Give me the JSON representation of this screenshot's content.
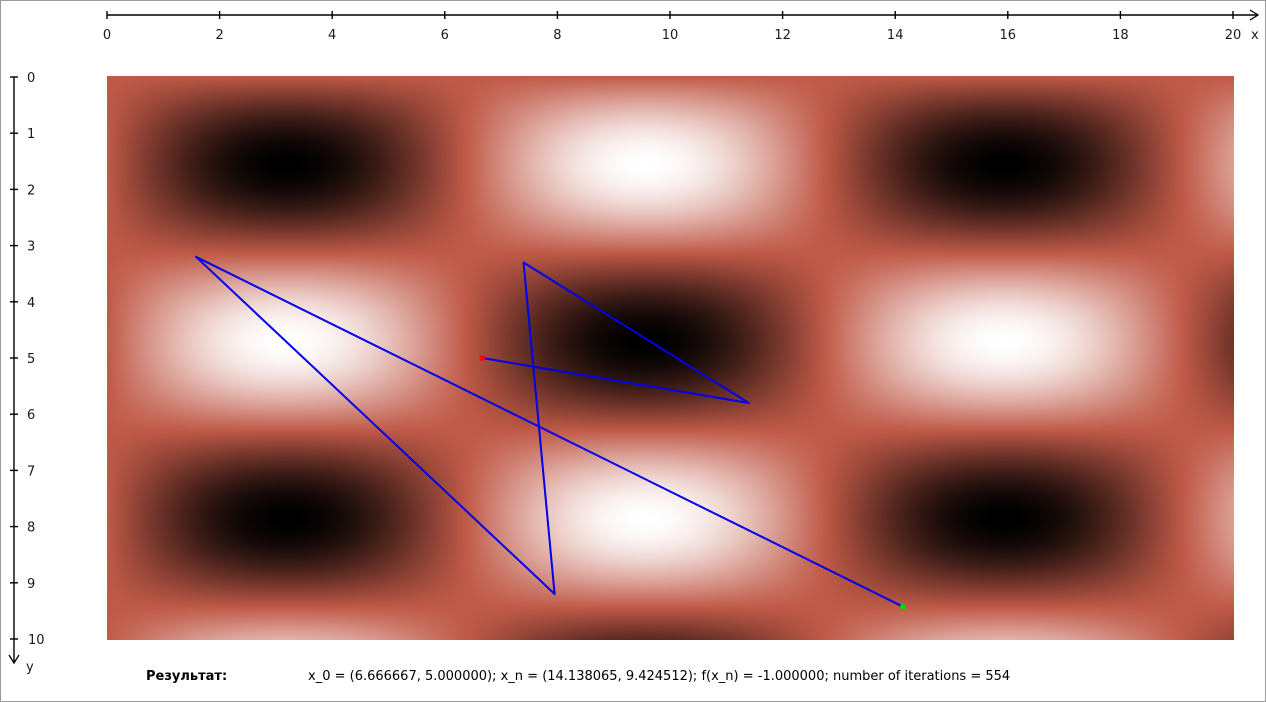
{
  "chart_data": {
    "type": "heatmap",
    "xlabel": "x",
    "ylabel": "y",
    "xlim": [
      0,
      20
    ],
    "ylim": [
      0,
      10
    ],
    "x_ticks": [
      "0",
      "2",
      "4",
      "6",
      "8",
      "10",
      "12",
      "14",
      "16",
      "18",
      "20"
    ],
    "y_ticks": [
      "0",
      "1",
      "2",
      "3",
      "4",
      "5",
      "6",
      "7",
      "8",
      "9",
      "10"
    ],
    "heatmap_extent": {
      "x": [
        0,
        20
      ],
      "y": [
        0,
        10
      ]
    },
    "y_axis_direction": "down",
    "colors": {
      "low": "#000000",
      "mid": "#c05a48",
      "high": "#ffffff",
      "path": "#0000ee",
      "start_point": "#ff0000",
      "end_point": "#00dd00"
    },
    "path": [
      {
        "x": 6.666667,
        "y": 5.0
      },
      {
        "x": 11.4,
        "y": 5.8
      },
      {
        "x": 7.4,
        "y": 3.3
      },
      {
        "x": 7.95,
        "y": 9.2
      },
      {
        "x": 1.58,
        "y": 3.2
      },
      {
        "x": 14.138065,
        "y": 9.424512
      }
    ],
    "start": {
      "x": 6.666667,
      "y": 5.0
    },
    "end": {
      "x": 14.138065,
      "y": 9.424512
    }
  },
  "result": {
    "label": "Результат:",
    "text": "x_0 = (6.666667, 5.000000); x_n = (14.138065, 9.424512); f(x_n) = -1.000000; number of iterations = 554"
  }
}
